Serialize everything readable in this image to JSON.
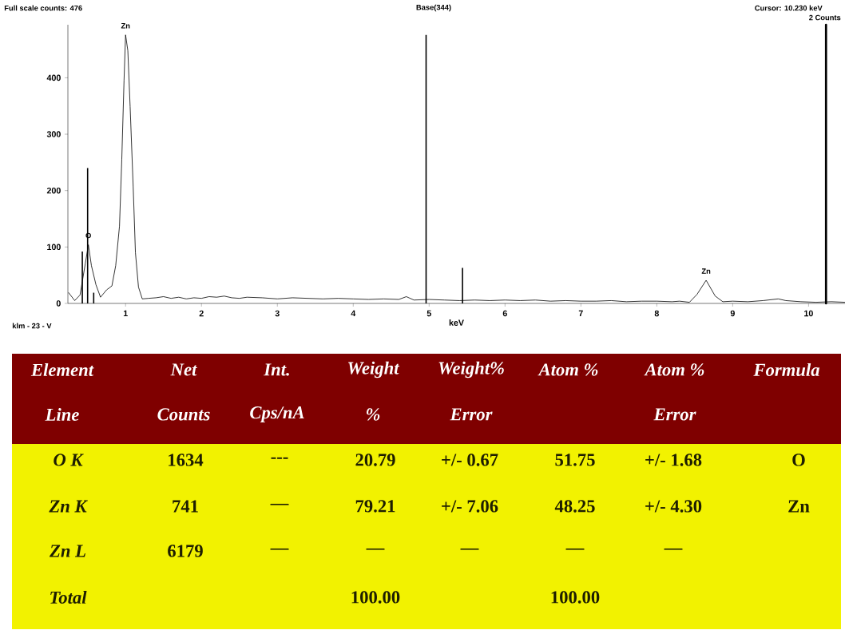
{
  "chart_data": [
    {
      "type": "line",
      "title": "Base(344)",
      "xlabel": "keV",
      "xlim": [
        0.24,
        10.48
      ],
      "ylim": [
        0,
        494
      ],
      "xticks": [
        1,
        2,
        3,
        4,
        5,
        6,
        7,
        8,
        9,
        10
      ],
      "yticks": [
        0,
        100,
        200,
        300,
        400
      ],
      "series": [
        {
          "color": "#000000",
          "x": [
            0.25,
            0.33,
            0.4,
            0.43,
            0.47,
            0.51,
            0.55,
            0.61,
            0.67,
            0.75,
            0.82,
            0.87,
            0.92,
            0.95,
            0.98,
            1.0,
            1.03,
            1.06,
            1.1,
            1.13,
            1.17,
            1.22,
            1.3,
            1.4,
            1.5,
            1.6,
            1.7,
            1.8,
            1.9,
            2.0,
            2.1,
            2.2,
            2.3,
            2.4,
            2.5,
            2.6,
            2.8,
            3.0,
            3.2,
            3.4,
            3.6,
            3.8,
            4.0,
            4.2,
            4.4,
            4.6,
            4.7,
            4.8,
            5.0,
            5.2,
            5.4,
            5.6,
            5.8,
            6.0,
            6.2,
            6.4,
            6.6,
            6.8,
            7.0,
            7.2,
            7.4,
            7.6,
            7.8,
            8.0,
            8.2,
            8.3,
            8.43,
            8.53,
            8.65,
            8.77,
            8.87,
            9.0,
            9.2,
            9.4,
            9.6,
            9.7,
            9.9,
            10.1,
            10.3,
            10.48
          ],
          "values": [
            19,
            5,
            15,
            39,
            71,
            104,
            67,
            33,
            11,
            24,
            31,
            67,
            137,
            255,
            396,
            476,
            448,
            349,
            208,
            90,
            29,
            8,
            9,
            10,
            12,
            9,
            11,
            8,
            10,
            9,
            12,
            11,
            13,
            10,
            9,
            11,
            10,
            8,
            10,
            9,
            8,
            9,
            8,
            7,
            8,
            7,
            12,
            6,
            7,
            6,
            5,
            6,
            5,
            6,
            5,
            6,
            4,
            5,
            4,
            4,
            5,
            3,
            4,
            4,
            3,
            4,
            2,
            16,
            41,
            13,
            3,
            4,
            3,
            5,
            8,
            5,
            3,
            2,
            3,
            2
          ]
        },
        {
          "type": "bar",
          "color": "#000000",
          "x": [
            0.43,
            0.5,
            0.58,
            4.96,
            5.44
          ],
          "values": [
            92,
            240,
            19,
            476,
            63
          ]
        }
      ],
      "ref_lines": [
        {
          "axis": "x",
          "value": 10.23,
          "color": "#000000"
        }
      ],
      "annotations": [
        "Full scale counts: 476",
        "Cursor:  10.230 keV",
        "2 Counts",
        "klm - 23 - V",
        {
          "text": "Zn",
          "x": 1.0,
          "y": 476
        },
        {
          "text": "O",
          "x": 0.51,
          "y": 104
        },
        {
          "text": "Zn",
          "x": 8.65,
          "y": 41
        }
      ]
    },
    {
      "type": "other",
      "colors": [
        "#7f0000",
        "#f2f200"
      ],
      "annotations": [
        "Element",
        "Net",
        "Int.",
        "Weight",
        "Weight%",
        "Atom %",
        "Atom %",
        "Formula",
        "Line",
        "Counts",
        "Cps/nA",
        "%",
        "Error",
        "Error",
        "O K",
        "1634",
        "---",
        "20.79",
        "+/- 0.67",
        "51.75",
        "+/- 1.68",
        "O",
        "Zn K",
        "741",
        "—",
        "79.21",
        "+/- 7.06",
        "48.25",
        "+/- 4.30",
        "Zn",
        "Zn L",
        "6179",
        "—",
        "—",
        "—",
        "—",
        "—",
        "Total",
        "100.00",
        "100.00"
      ]
    }
  ]
}
